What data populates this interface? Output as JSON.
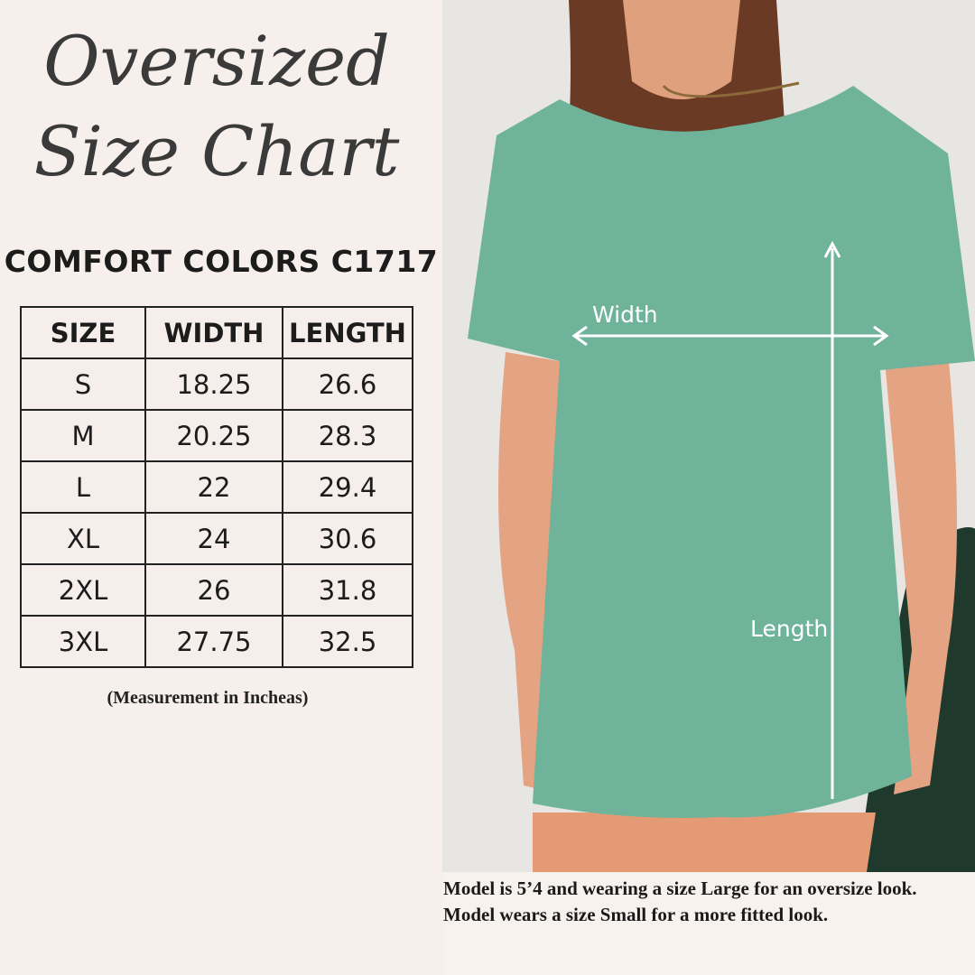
{
  "heading": {
    "line1": "Oversized",
    "line2": "Size Chart"
  },
  "subtitle": "COMFORT COLORS C1717",
  "table": {
    "headers": [
      "SIZE",
      "WIDTH",
      "LENGTH"
    ],
    "rows": [
      [
        "S",
        "18.25",
        "26.6"
      ],
      [
        "M",
        "20.25",
        "28.3"
      ],
      [
        "L",
        "22",
        "29.4"
      ],
      [
        "XL",
        "24",
        "30.6"
      ],
      [
        "2XL",
        "26",
        "31.8"
      ],
      [
        "3XL",
        "27.75",
        "32.5"
      ]
    ]
  },
  "note": "(Measurement in Incheas)",
  "photo": {
    "width_label": "Width",
    "length_label": "Length",
    "shirt_color": "#6fb39a"
  },
  "caption": {
    "line1": "Model is 5’4 and wearing a size Large for an oversize look.",
    "line2": "Model wears a size Small for a more fitted look."
  }
}
